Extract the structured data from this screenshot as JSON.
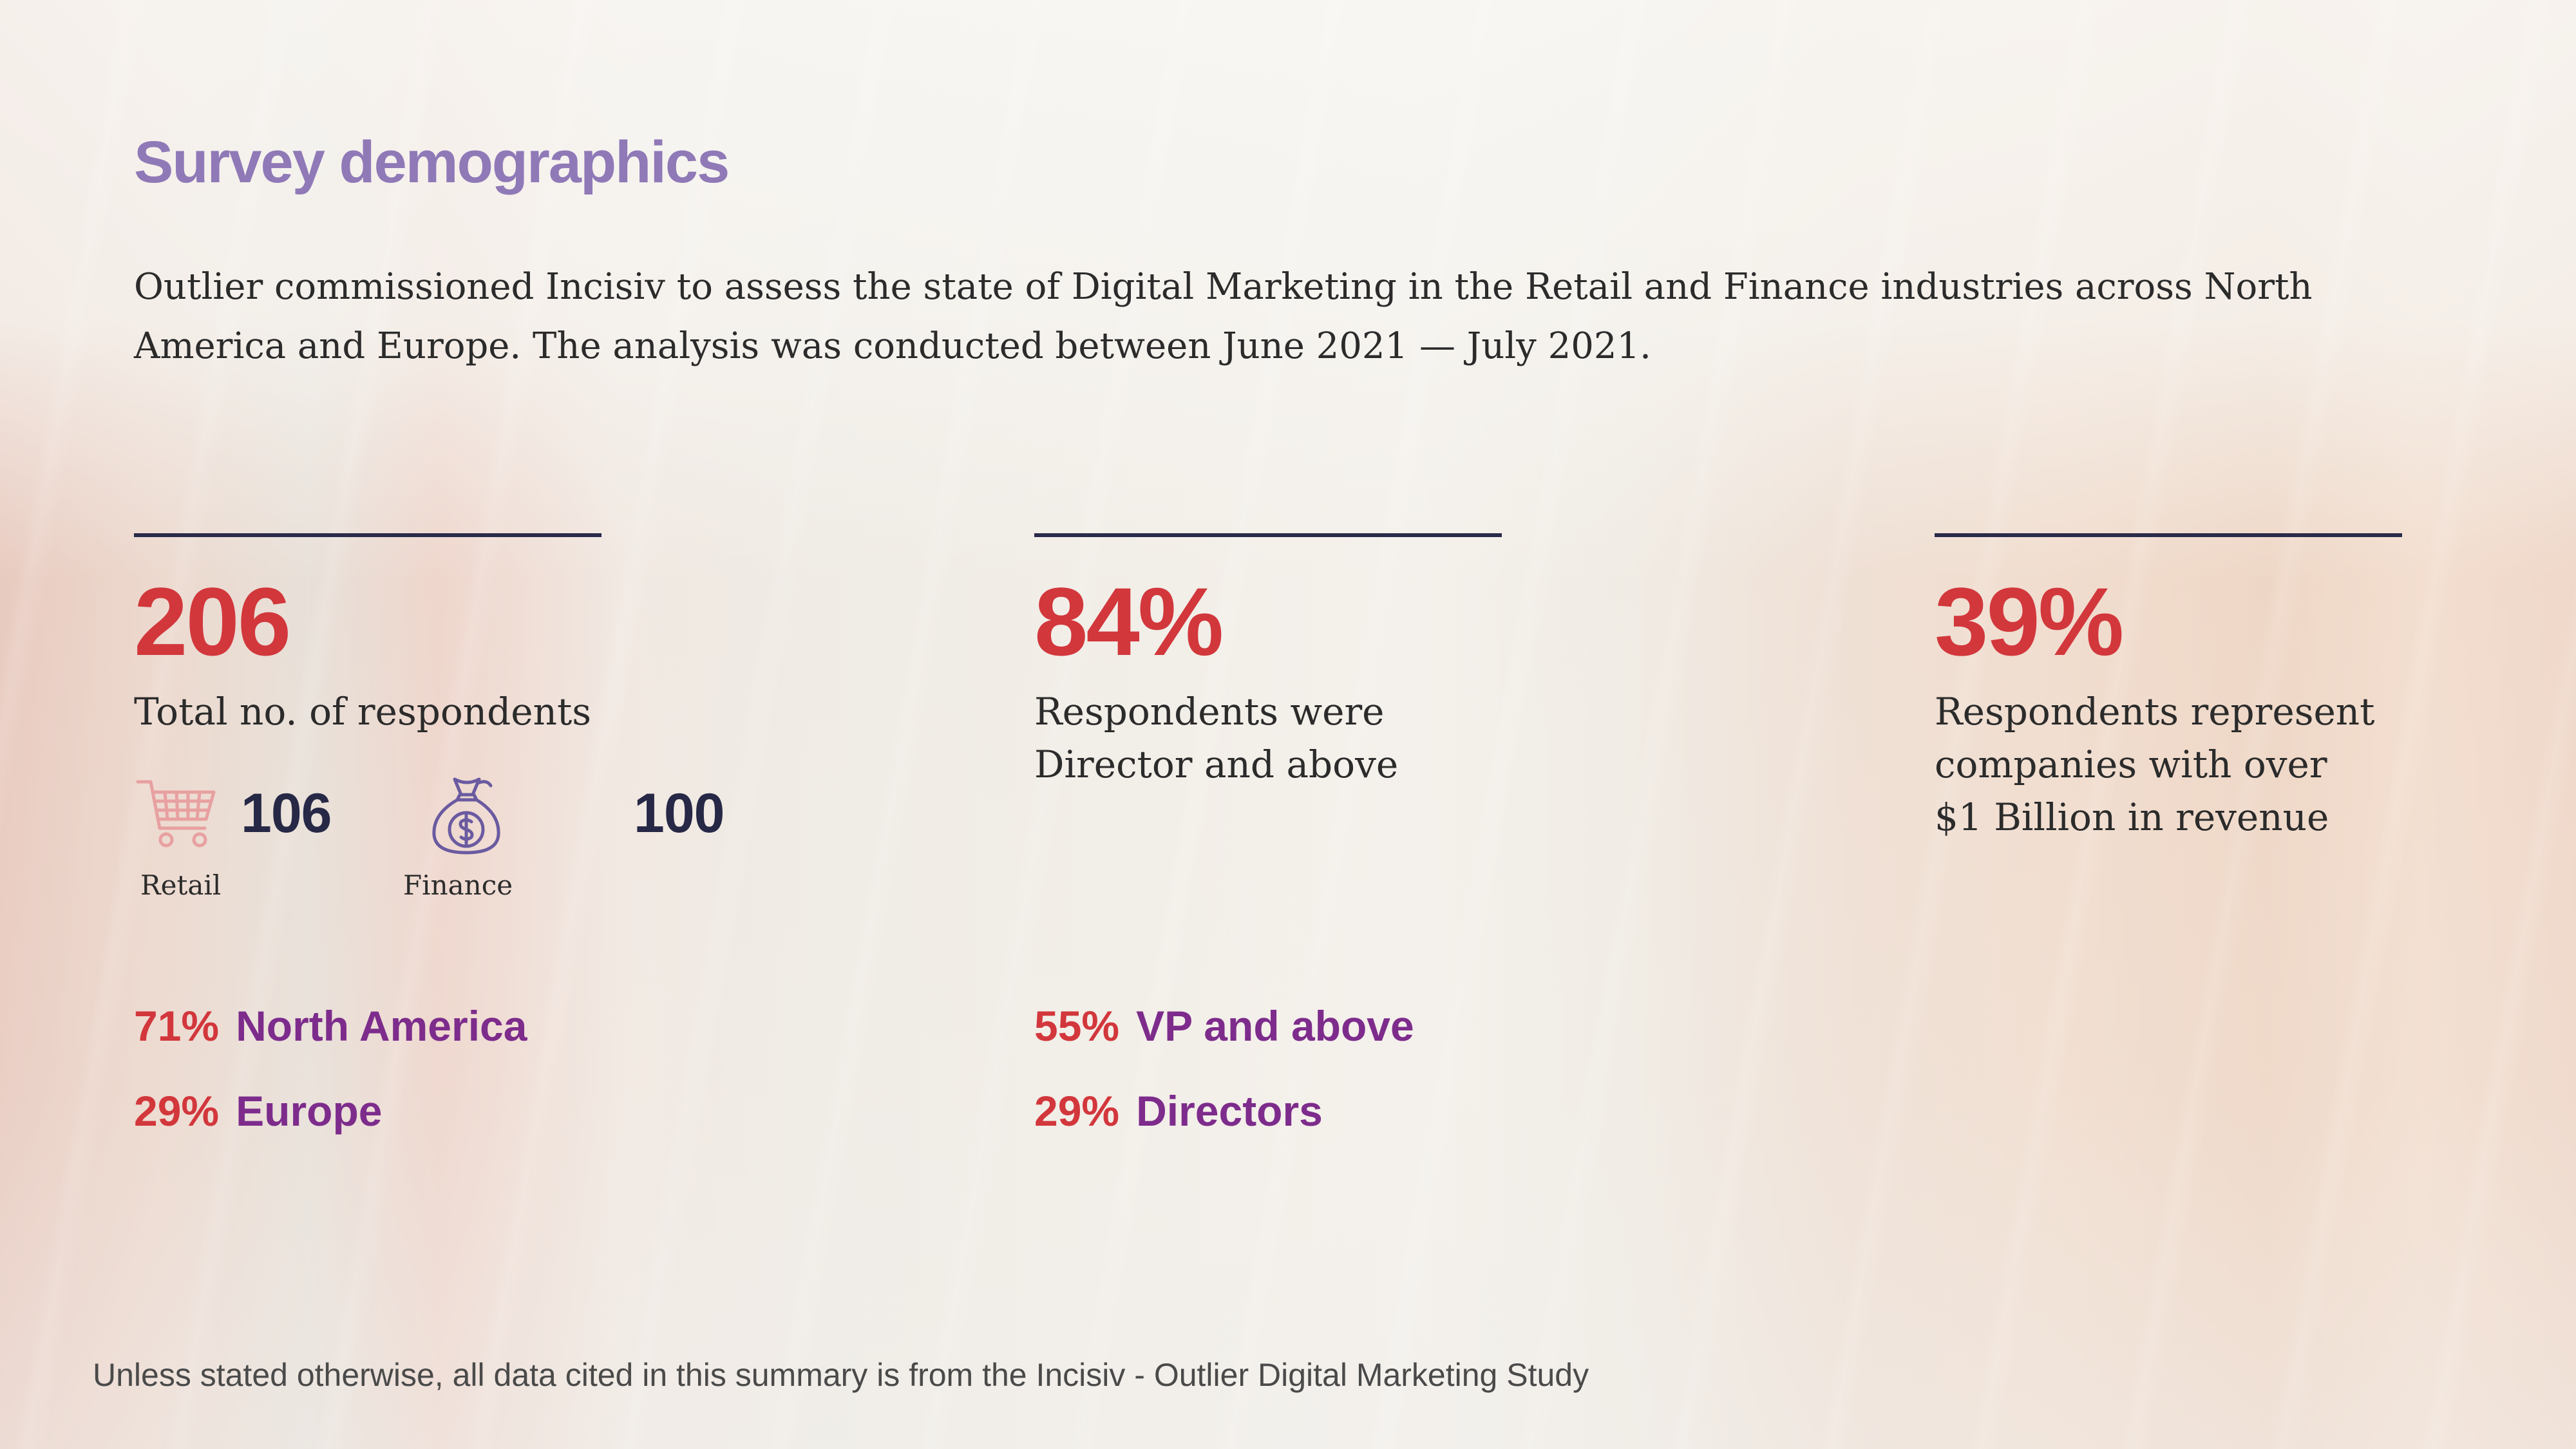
{
  "title": "Survey demographics",
  "intro": "Outlier commissioned Incisiv to assess the state of Digital Marketing in the Retail and Finance industries across North America and Europe. The analysis was conducted between June 2021 — July 2021.",
  "stats": [
    {
      "value": "206",
      "description": "Total no. of respondents",
      "breakdown": [
        {
          "icon": "shopping-cart-icon",
          "value": "106",
          "label": "Retail"
        },
        {
          "icon": "money-bag-icon",
          "value": "100",
          "label": "Finance"
        }
      ],
      "splits": [
        {
          "percent": "71%",
          "label": "North America"
        },
        {
          "percent": "29%",
          "label": "Europe"
        }
      ]
    },
    {
      "value": "84%",
      "description": "Respondents were Director and above",
      "splits": [
        {
          "percent": "55%",
          "label": "VP and above"
        },
        {
          "percent": "29%",
          "label": "Directors"
        }
      ]
    },
    {
      "value": "39%",
      "description": "Respondents represent companies with over $1 Billion in revenue"
    }
  ],
  "footer": "Unless stated otherwise, all data cited in this summary is from the Incisiv - Outlier Digital Marketing Study",
  "colors": {
    "title": "#9079b7",
    "highlight": "#d2373c",
    "split_label": "#7d2c8c",
    "rule": "#2a2b4a",
    "count": "#262846",
    "cart_icon": "#e8a0a0",
    "bag_icon": "#6a5aa0"
  }
}
